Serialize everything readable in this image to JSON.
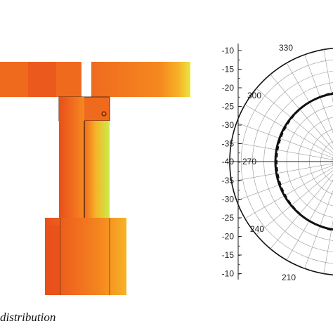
{
  "left_panel": {
    "caption": "distribution",
    "colormap": {
      "red": "#e8501a",
      "orange": "#f06a1e",
      "orange_light": "#f5891f",
      "amber": "#f7b227",
      "yellow": "#e9e640",
      "lime": "#c9ee4a"
    }
  },
  "right_panel": {
    "chart_data": {
      "type": "polar",
      "radial_axis": {
        "ticks_upper": [
          "-10",
          "-15",
          "-20",
          "-25",
          "-30",
          "-35"
        ],
        "tick_center": "-40",
        "ticks_lower": [
          "-35",
          "-30",
          "-25",
          "-20",
          "-15",
          "-10"
        ],
        "range": [
          -40,
          -10
        ]
      },
      "angle_labels": [
        "330",
        "300",
        "270",
        "240",
        "210"
      ],
      "series": [
        {
          "style": "solid",
          "color": "#111111"
        },
        {
          "style": "dashed",
          "color": "#111111"
        }
      ]
    }
  }
}
